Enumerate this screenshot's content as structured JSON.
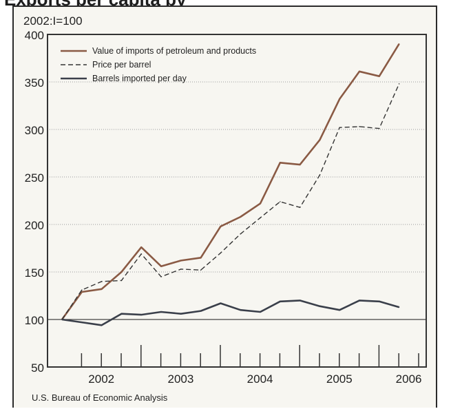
{
  "title_fragment": "Exports per capita by",
  "chart_data": {
    "type": "line",
    "unit_label": "2002:I=100",
    "source": "U.S. Bureau of Economic Analysis",
    "x_tick_labels": [
      "2002",
      "2003",
      "2004",
      "2005",
      "2006"
    ],
    "y_ticks": [
      50,
      100,
      150,
      200,
      250,
      300,
      350,
      400
    ],
    "ylim": [
      50,
      400
    ],
    "x": [
      "2002 Q1",
      "2002 Q2",
      "2002 Q3",
      "2002 Q4",
      "2003 Q1",
      "2003 Q2",
      "2003 Q3",
      "2003 Q4",
      "2004 Q1",
      "2004 Q2",
      "2004 Q3",
      "2004 Q4",
      "2005 Q1",
      "2005 Q2",
      "2005 Q3",
      "2005 Q4",
      "2006 Q1",
      "2006 Q2",
      "2006 Q3"
    ],
    "legend_position": "top-left",
    "grid": "horizontal dotted",
    "series": [
      {
        "name": "Value of imports of petroleum and products",
        "style": "solid",
        "color": "#8a5a44",
        "values": [
          100,
          129,
          132,
          150,
          176,
          156,
          162,
          165,
          198,
          208,
          222,
          265,
          263,
          289,
          332,
          361,
          356,
          390,
          null
        ]
      },
      {
        "name": "Price per barrel",
        "style": "dashed",
        "color": "#333333",
        "values": [
          100,
          131,
          140,
          141,
          169,
          145,
          153,
          152,
          170,
          190,
          207,
          224,
          218,
          252,
          302,
          303,
          301,
          348,
          null
        ]
      },
      {
        "name": "Barrels imported per day",
        "style": "solid",
        "color": "#3a3f4a",
        "values": [
          100,
          97,
          94,
          106,
          105,
          108,
          106,
          109,
          117,
          110,
          108,
          119,
          120,
          114,
          110,
          120,
          119,
          113,
          null
        ]
      }
    ]
  }
}
